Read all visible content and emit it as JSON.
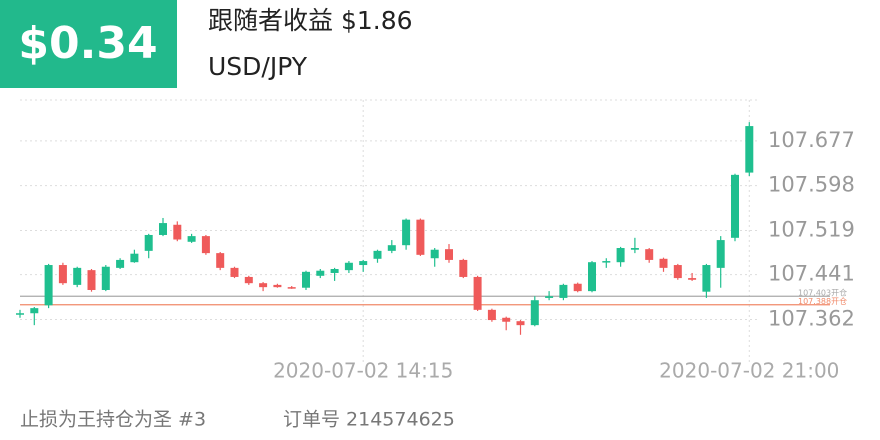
{
  "header": {
    "profit": "$0.34",
    "follower_profit": "跟随者收益 $1.86",
    "symbol": "USD/JPY"
  },
  "chart_data": {
    "type": "candlestick",
    "x": [
      null,
      null,
      null,
      null,
      null,
      null,
      null,
      null,
      null,
      null,
      null,
      null,
      null,
      null,
      null,
      null,
      null,
      null,
      null,
      null,
      null,
      null,
      null,
      null,
      "2020-07-02 14:15",
      null,
      null,
      null,
      null,
      null,
      null,
      null,
      null,
      null,
      null,
      null,
      null,
      null,
      null,
      null,
      null,
      null,
      null,
      null,
      null,
      null,
      null,
      null,
      null,
      null,
      null,
      "2020-07-02 21:00"
    ],
    "open": [
      107.372,
      107.373,
      107.387,
      107.458,
      107.423,
      107.449,
      107.414,
      107.453,
      107.463,
      107.483,
      107.511,
      107.529,
      107.499,
      107.509,
      107.479,
      107.453,
      107.437,
      107.426,
      107.423,
      107.419,
      107.418,
      107.439,
      107.444,
      107.449,
      107.458,
      107.469,
      107.483,
      107.493,
      107.538,
      107.47,
      107.486,
      107.467,
      107.437,
      107.379,
      107.365,
      107.359,
      107.352,
      107.4,
      107.4,
      107.425,
      107.412,
      107.463,
      107.463,
      107.485,
      107.486,
      107.469,
      107.458,
      107.435,
      107.411,
      107.453,
      107.506,
      107.621
    ],
    "high": [
      107.379,
      107.384,
      107.46,
      107.462,
      107.455,
      107.451,
      107.458,
      107.47,
      107.485,
      107.513,
      107.541,
      107.535,
      107.513,
      107.511,
      107.481,
      107.455,
      107.439,
      107.428,
      107.425,
      107.421,
      107.448,
      107.451,
      107.453,
      107.465,
      107.467,
      107.485,
      107.502,
      107.54,
      107.54,
      107.488,
      107.495,
      107.469,
      107.439,
      107.381,
      107.367,
      107.361,
      107.403,
      107.412,
      107.425,
      107.427,
      107.465,
      107.47,
      107.49,
      107.506,
      107.488,
      107.471,
      107.46,
      107.444,
      107.46,
      107.509,
      107.619,
      107.71
    ],
    "low": [
      107.365,
      107.352,
      107.382,
      107.423,
      107.419,
      107.411,
      107.412,
      107.451,
      107.462,
      107.47,
      107.509,
      107.5,
      107.497,
      107.476,
      107.449,
      107.435,
      107.423,
      107.412,
      107.418,
      107.416,
      107.414,
      107.435,
      107.43,
      107.444,
      107.446,
      107.462,
      107.479,
      107.485,
      107.474,
      107.455,
      107.462,
      107.435,
      107.377,
      107.358,
      107.343,
      107.335,
      107.35,
      107.396,
      107.396,
      107.41,
      107.41,
      107.453,
      107.455,
      107.479,
      107.462,
      107.446,
      107.432,
      107.43,
      107.4,
      107.418,
      107.5,
      107.615
    ],
    "close": [
      107.373,
      107.382,
      107.458,
      107.426,
      107.453,
      107.414,
      107.455,
      107.467,
      107.478,
      107.511,
      107.532,
      107.503,
      107.509,
      107.479,
      107.453,
      107.437,
      107.426,
      107.419,
      107.419,
      107.418,
      107.446,
      107.448,
      107.451,
      107.462,
      107.465,
      107.483,
      107.493,
      107.538,
      107.476,
      107.485,
      107.467,
      107.437,
      107.379,
      107.361,
      107.358,
      107.352,
      107.396,
      107.403,
      107.423,
      107.412,
      107.463,
      107.465,
      107.488,
      107.488,
      107.467,
      107.453,
      107.435,
      107.432,
      107.458,
      107.502,
      107.617,
      107.703
    ],
    "up_color": "#1fbf8f",
    "down_color": "#ef5a5a",
    "ylim": [
      107.317,
      107.749
    ],
    "yticks": [
      107.677,
      107.598,
      107.519,
      107.441,
      107.362
    ],
    "price_lines": [
      {
        "value": 107.403,
        "label": "107.403开仓",
        "color": "#aaaaaa"
      },
      {
        "value": 107.388,
        "label": "107.388开仓",
        "color": "#f08a6a"
      }
    ],
    "grid": true
  },
  "footer": {
    "strategy": "止损为王持仓为圣 #3",
    "order": "订单号 214574625"
  }
}
